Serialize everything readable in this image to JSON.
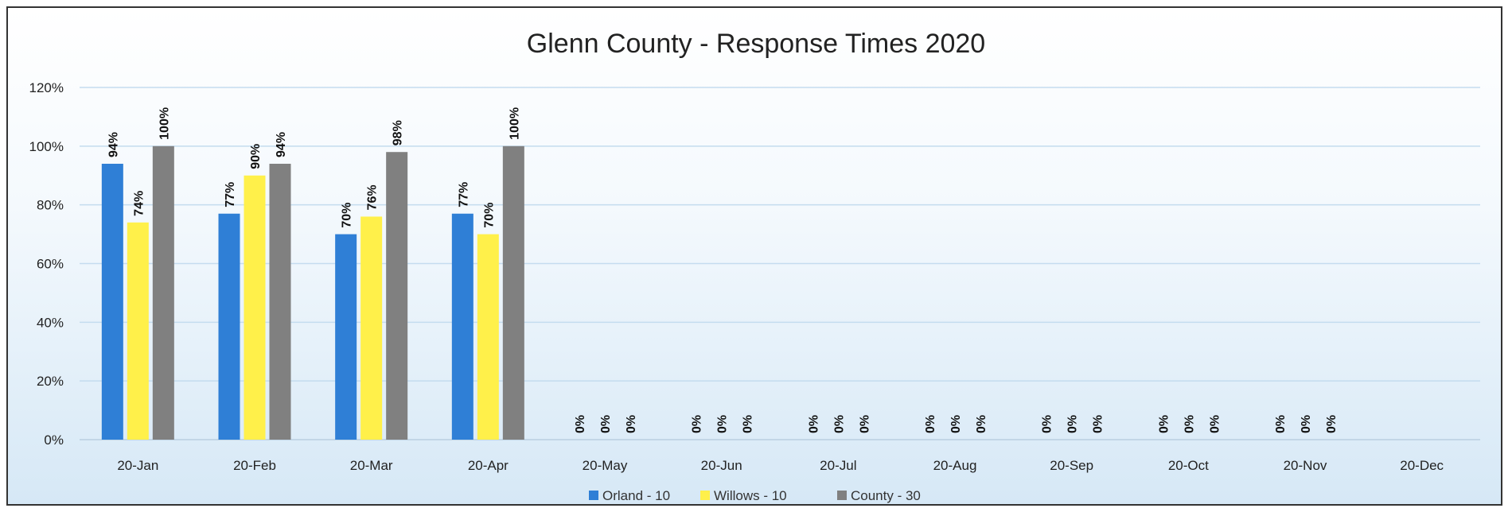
{
  "chart_data": {
    "type": "bar",
    "title": "Glenn County - Response Times 2020",
    "xlabel": "",
    "ylabel": "",
    "ylim": [
      0,
      1.2
    ],
    "yticks": [
      "0%",
      "20%",
      "40%",
      "60%",
      "80%",
      "100%",
      "120%"
    ],
    "categories": [
      "20-Jan",
      "20-Feb",
      "20-Mar",
      "20-Apr",
      "20-May",
      "20-Jun",
      "20-Jul",
      "20-Aug",
      "20-Sep",
      "20-Oct",
      "20-Nov",
      "20-Dec"
    ],
    "series": [
      {
        "name": "Orland - 10",
        "color": "#2f7fd6",
        "values": [
          0.94,
          0.77,
          0.7,
          0.77,
          0,
          0,
          0,
          0,
          0,
          0,
          0,
          null
        ],
        "labels": [
          "94%",
          "77%",
          "70%",
          "77%",
          "0%",
          "0%",
          "0%",
          "0%",
          "0%",
          "0%",
          "0%",
          ""
        ]
      },
      {
        "name": "Willows - 10",
        "color": "#fff04a",
        "values": [
          0.74,
          0.9,
          0.76,
          0.7,
          0,
          0,
          0,
          0,
          0,
          0,
          0,
          null
        ],
        "labels": [
          "74%",
          "90%",
          "76%",
          "70%",
          "0%",
          "0%",
          "0%",
          "0%",
          "0%",
          "0%",
          "0%",
          ""
        ]
      },
      {
        "name": "County - 30",
        "color": "#808080",
        "values": [
          1.0,
          0.94,
          0.98,
          1.0,
          0,
          0,
          0,
          0,
          0,
          0,
          0,
          null
        ],
        "labels": [
          "100%",
          "94%",
          "98%",
          "100%",
          "0%",
          "0%",
          "0%",
          "0%",
          "0%",
          "0%",
          "0%",
          ""
        ]
      }
    ],
    "grid": true,
    "legend": "bottom"
  }
}
